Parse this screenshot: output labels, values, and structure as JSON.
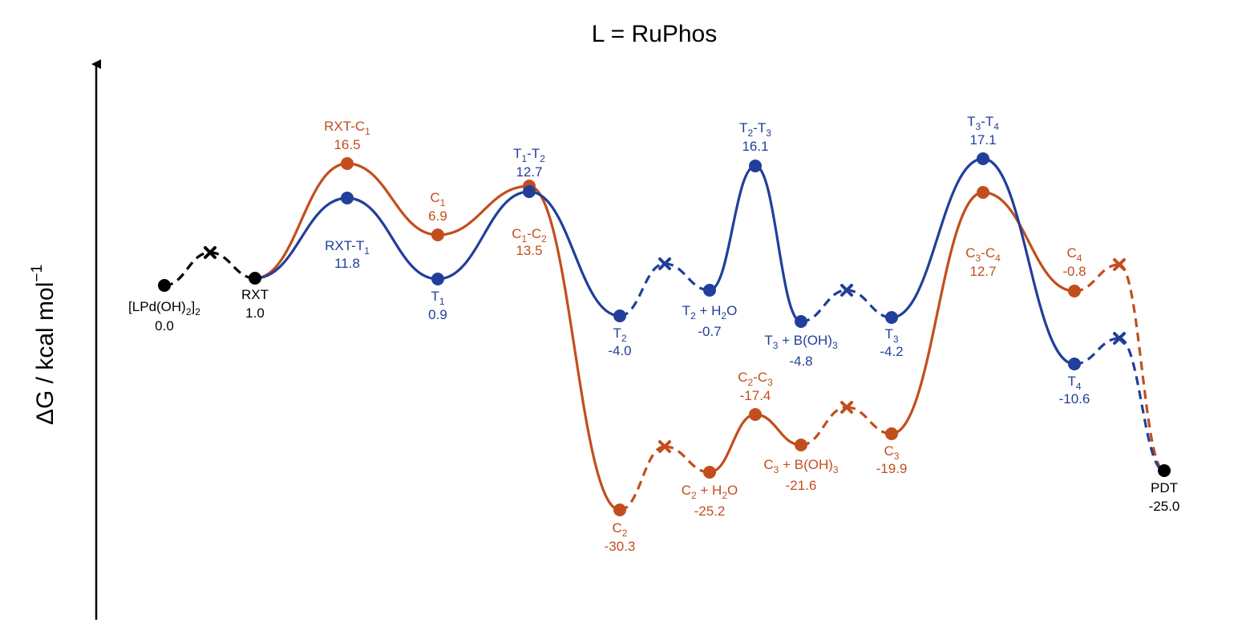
{
  "chart_data": {
    "type": "line",
    "title": "L = RuPhos",
    "ylabel": "ΔG / kcal mol",
    "ylabel_superscript": "−1",
    "xlabel": "",
    "grid": false,
    "colors": {
      "common": "#000000",
      "orange": "#C24E1E",
      "blue": "#213F9A"
    },
    "points": [
      {
        "id": "START",
        "name": "[LPd(OH)2]2",
        "value": "0.0",
        "series": "common",
        "marker": "dot"
      },
      {
        "id": "XS",
        "name": "",
        "value": "",
        "series": "common",
        "marker": "cross"
      },
      {
        "id": "RXT",
        "name": "RXT",
        "value": "1.0",
        "series": "common",
        "marker": "dot"
      },
      {
        "id": "RXTC1",
        "name": "RXT-C1",
        "value": "16.5",
        "series": "orange",
        "marker": "dot"
      },
      {
        "id": "C1",
        "name": "C1",
        "value": "6.9",
        "series": "orange",
        "marker": "dot"
      },
      {
        "id": "C1C2",
        "name": "C1-C2",
        "value": "13.5",
        "series": "orange",
        "marker": "dot"
      },
      {
        "id": "C2",
        "name": "C2",
        "value": "-30.3",
        "series": "orange",
        "marker": "dot"
      },
      {
        "id": "XC2",
        "name": "",
        "value": "",
        "series": "orange",
        "marker": "cross"
      },
      {
        "id": "C2H2O",
        "name": "C2 + H2O",
        "value": "-25.2",
        "series": "orange",
        "marker": "dot"
      },
      {
        "id": "C2C3",
        "name": "C2-C3",
        "value": "-17.4",
        "series": "orange",
        "marker": "dot"
      },
      {
        "id": "C3BOH",
        "name": "C3 + B(OH)3",
        "value": "-21.6",
        "series": "orange",
        "marker": "dot"
      },
      {
        "id": "XC3",
        "name": "",
        "value": "",
        "series": "orange",
        "marker": "cross"
      },
      {
        "id": "C3",
        "name": "C3",
        "value": "-19.9",
        "series": "orange",
        "marker": "dot"
      },
      {
        "id": "C3C4",
        "name": "C3-C4",
        "value": "12.7",
        "series": "orange",
        "marker": "dot"
      },
      {
        "id": "C4",
        "name": "C4",
        "value": "-0.8",
        "series": "orange",
        "marker": "dot"
      },
      {
        "id": "XC4",
        "name": "",
        "value": "",
        "series": "orange",
        "marker": "cross"
      },
      {
        "id": "RXTT1",
        "name": "RXT-T1",
        "value": "11.8",
        "series": "blue",
        "marker": "dot"
      },
      {
        "id": "T1",
        "name": "T1",
        "value": "0.9",
        "series": "blue",
        "marker": "dot"
      },
      {
        "id": "T1T2",
        "name": "T1-T2",
        "value": "12.7",
        "series": "blue",
        "marker": "dot"
      },
      {
        "id": "T2",
        "name": "T2",
        "value": "-4.0",
        "series": "blue",
        "marker": "dot"
      },
      {
        "id": "XT2",
        "name": "",
        "value": "",
        "series": "blue",
        "marker": "cross"
      },
      {
        "id": "T2H2O",
        "name": "T2 + H2O",
        "value": "-0.7",
        "series": "blue",
        "marker": "dot"
      },
      {
        "id": "T2T3",
        "name": "T2-T3",
        "value": "16.1",
        "series": "blue",
        "marker": "dot"
      },
      {
        "id": "T3BOH",
        "name": "T3 + B(OH)3",
        "value": "-4.8",
        "series": "blue",
        "marker": "dot"
      },
      {
        "id": "XT3",
        "name": "",
        "value": "",
        "series": "blue",
        "marker": "cross"
      },
      {
        "id": "T3",
        "name": "T3",
        "value": "-4.2",
        "series": "blue",
        "marker": "dot"
      },
      {
        "id": "T3T4",
        "name": "T3-T4",
        "value": "17.1",
        "series": "blue",
        "marker": "dot"
      },
      {
        "id": "T4",
        "name": "T4",
        "value": "-10.6",
        "series": "blue",
        "marker": "dot"
      },
      {
        "id": "XT4",
        "name": "",
        "value": "",
        "series": "blue",
        "marker": "cross"
      },
      {
        "id": "PDT",
        "name": "PDT",
        "value": "-25.0",
        "series": "common",
        "marker": "dot"
      }
    ],
    "series": [
      {
        "name": "orange",
        "color_key": "orange",
        "segments": [
          {
            "from": "RXT",
            "to": "RXTC1",
            "style": "solid"
          },
          {
            "from": "RXTC1",
            "to": "C1",
            "style": "solid"
          },
          {
            "from": "C1",
            "to": "C1C2",
            "style": "solid"
          },
          {
            "from": "C1C2",
            "to": "C2",
            "style": "solid"
          },
          {
            "from": "C2",
            "to": "XC2",
            "style": "dashed"
          },
          {
            "from": "XC2",
            "to": "C2H2O",
            "style": "dashed"
          },
          {
            "from": "C2H2O",
            "to": "C2C3",
            "style": "solid"
          },
          {
            "from": "C2C3",
            "to": "C3BOH",
            "style": "solid"
          },
          {
            "from": "C3BOH",
            "to": "XC3",
            "style": "dashed"
          },
          {
            "from": "XC3",
            "to": "C3",
            "style": "dashed"
          },
          {
            "from": "C3",
            "to": "C3C4",
            "style": "solid"
          },
          {
            "from": "C3C4",
            "to": "C4",
            "style": "solid"
          },
          {
            "from": "C4",
            "to": "XC4",
            "style": "dashed"
          },
          {
            "from": "XC4",
            "to": "PDT",
            "style": "dashed"
          }
        ]
      },
      {
        "name": "blue",
        "color_key": "blue",
        "segments": [
          {
            "from": "RXT",
            "to": "RXTT1",
            "style": "solid"
          },
          {
            "from": "RXTT1",
            "to": "T1",
            "style": "solid"
          },
          {
            "from": "T1",
            "to": "T1T2",
            "style": "solid"
          },
          {
            "from": "T1T2",
            "to": "T2",
            "style": "solid"
          },
          {
            "from": "T2",
            "to": "XT2",
            "style": "dashed"
          },
          {
            "from": "XT2",
            "to": "T2H2O",
            "style": "dashed"
          },
          {
            "from": "T2H2O",
            "to": "T2T3",
            "style": "solid"
          },
          {
            "from": "T2T3",
            "to": "T3BOH",
            "style": "solid"
          },
          {
            "from": "T3BOH",
            "to": "XT3",
            "style": "dashed"
          },
          {
            "from": "XT3",
            "to": "T3",
            "style": "dashed"
          },
          {
            "from": "T3",
            "to": "T3T4",
            "style": "solid"
          },
          {
            "from": "T3T4",
            "to": "T4",
            "style": "solid"
          },
          {
            "from": "T4",
            "to": "XT4",
            "style": "dashed"
          },
          {
            "from": "XT4",
            "to": "PDT",
            "style": "dashed"
          }
        ]
      },
      {
        "name": "common",
        "color_key": "common",
        "segments": [
          {
            "from": "START",
            "to": "XS",
            "style": "dashed"
          },
          {
            "from": "XS",
            "to": "RXT",
            "style": "dashed"
          }
        ]
      }
    ]
  }
}
